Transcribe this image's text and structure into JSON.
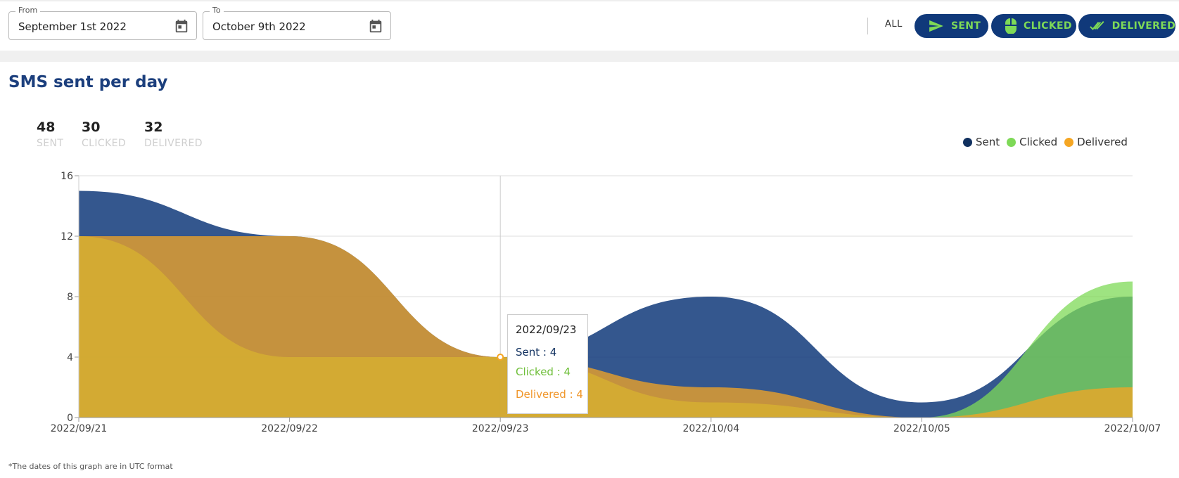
{
  "filters": {
    "from_label": "From",
    "from_value": "September 1st 2022",
    "to_label": "To",
    "to_value": "October 9th 2022"
  },
  "toggles": {
    "all_label": "ALL",
    "sent_label": "SENT",
    "clicked_label": "CLICKED",
    "delivered_label": "DELIVERED"
  },
  "title": "SMS sent per day",
  "stats": [
    {
      "value": "48",
      "label": "SENT"
    },
    {
      "value": "30",
      "label": "CLICKED"
    },
    {
      "value": "32",
      "label": "DELIVERED"
    }
  ],
  "legend": [
    {
      "name": "Sent",
      "color": "#10305f"
    },
    {
      "name": "Clicked",
      "color": "#7ed957"
    },
    {
      "name": "Delivered",
      "color": "#f5a623"
    }
  ],
  "tooltip": {
    "date": "2022/09/23",
    "sent": "Sent : 4",
    "clicked": "Clicked : 4",
    "delivered": "Delivered : 4"
  },
  "footnote": "*The dates of this graph are in UTC format",
  "colors": {
    "sent_fill": "#10397a",
    "clicked_fill": "#7ed957",
    "delivered_fill": "#f5a623",
    "pill_bg": "#10397a",
    "pill_text": "#7ed957"
  },
  "chart_data": {
    "type": "area",
    "x": [
      "2022/09/21",
      "2022/09/22",
      "2022/09/23",
      "2022/10/04",
      "2022/10/05",
      "2022/10/07"
    ],
    "series": [
      {
        "name": "Sent",
        "values": [
          15,
          12,
          4,
          8,
          1,
          8
        ]
      },
      {
        "name": "Clicked",
        "values": [
          12,
          4,
          4,
          1,
          0,
          9
        ]
      },
      {
        "name": "Delivered",
        "values": [
          12,
          12,
          4,
          2,
          0,
          2
        ]
      }
    ],
    "yticks": [
      "0",
      "4",
      "8",
      "12",
      "16"
    ],
    "ylim": [
      0,
      16
    ],
    "grid": true,
    "legend_position": "top-right"
  }
}
